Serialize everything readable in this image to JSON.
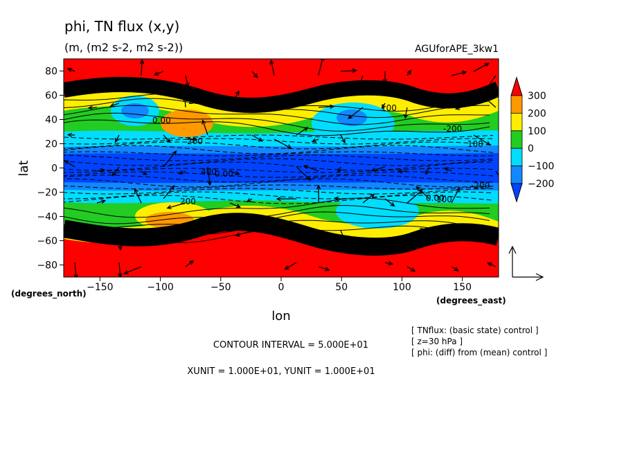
{
  "chart_data": {
    "type": "heatmap",
    "title": "phi, TN flux (x,y)",
    "subtitle": "(m, (m2 s-2, m2 s-2))",
    "dataset": "AGUforAPE_3kw1",
    "xlabel": "lon",
    "ylabel": "lat",
    "x_unit_label": "(degrees_east)",
    "y_unit_label": "(degrees_north)",
    "xlim": [
      -180,
      180
    ],
    "ylim": [
      -90,
      90
    ],
    "x_ticks": [
      -150,
      -100,
      -50,
      0,
      50,
      100,
      150
    ],
    "x_tick_labels": [
      "−150",
      "−100",
      "−50",
      "0",
      "50",
      "100",
      "150"
    ],
    "y_ticks": [
      80,
      60,
      40,
      20,
      0,
      -20,
      -40,
      -60,
      -80
    ],
    "y_tick_labels": [
      "80",
      "60",
      "40",
      "20",
      "0",
      "−20",
      "−40",
      "−60",
      "−80"
    ],
    "colorbar": {
      "levels": [
        300,
        200,
        100,
        0,
        -100,
        -200
      ],
      "labels": [
        "300",
        "200",
        "100",
        "0",
        "−100",
        "−200"
      ],
      "colors": [
        "#ff0000",
        "#ff9900",
        "#ffee00",
        "#22cc22",
        "#00ddff",
        "#1188ff",
        "#0044ff"
      ]
    },
    "contour_labels": [
      "200",
      "0.00",
      "100",
      "-200",
      "200",
      "100",
      "0.00",
      "400",
      "-200",
      "200",
      "100",
      "0.00"
    ],
    "contour_interval_text": "CONTOUR INTERVAL = 5.000E+01",
    "unit_text": "XUNIT = 1.000E+01, YUNIT = 1.000E+01",
    "notes": [
      "[ TNflux: (basic state) control ]",
      "[ z=30 hPa ]",
      "[ phi: (diff) from (mean) control ]"
    ]
  },
  "colors": {
    "red": "#ff0000",
    "orange": "#ff9900",
    "yellow": "#ffee00",
    "green": "#22cc22",
    "cyan": "#00ddff",
    "lightblue": "#1188ff",
    "blue": "#0044ff"
  }
}
